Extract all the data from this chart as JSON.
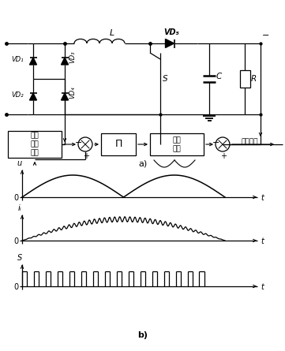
{
  "fig_width": 3.61,
  "fig_height": 4.45,
  "dpi": 100,
  "bg_color": "#ffffff",
  "line_color": "#000000",
  "label_a": "a)",
  "label_b": "b)",
  "VD1": "VD₁",
  "VD2": "VD₂",
  "VD3": "VD₃",
  "VD4": "VD₄",
  "VD5": "VD₅",
  "L": "L",
  "S": "S",
  "C": "C",
  "R": "R",
  "current_ctrl": "电流\n跟踪\n控制",
  "PI": "Π",
  "voltage_ctrl": "电压\n控制",
  "voltage_set": "电压给定",
  "u_label": "u",
  "iL_label": "iₗ",
  "S_label": "S",
  "t_label": "t",
  "O_label": "0"
}
